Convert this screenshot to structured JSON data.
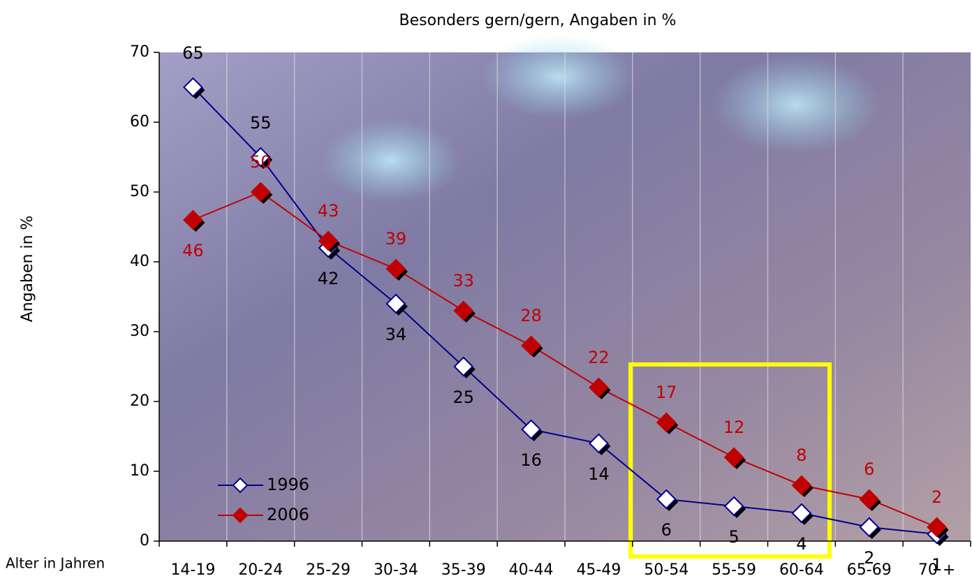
{
  "chart_data": {
    "type": "line",
    "title": "Besonders gern/gern, Angaben in %",
    "y_label": "Angaben in %",
    "x_label": "Alter in Jahren",
    "categories": [
      "14-19",
      "20-24",
      "25-29",
      "30-34",
      "35-39",
      "40-44",
      "45-49",
      "50-54",
      "55-59",
      "60-64",
      "65-69",
      "70 +"
    ],
    "series": [
      {
        "name": "1996",
        "color": "#00008b",
        "marker_fill": "#ffffff",
        "label_color": "#000000",
        "values": [
          65,
          55,
          42,
          34,
          25,
          16,
          14,
          6,
          5,
          4,
          2,
          1
        ]
      },
      {
        "name": "2006",
        "color": "#c00000",
        "marker_fill": "#c00000",
        "label_color": "#c00000",
        "values": [
          46,
          50,
          43,
          39,
          33,
          28,
          22,
          17,
          12,
          8,
          6,
          2
        ]
      }
    ],
    "ylim": [
      0,
      70
    ],
    "yticks": [
      0,
      10,
      20,
      30,
      40,
      50,
      60,
      70
    ],
    "legend": "lower-left"
  }
}
